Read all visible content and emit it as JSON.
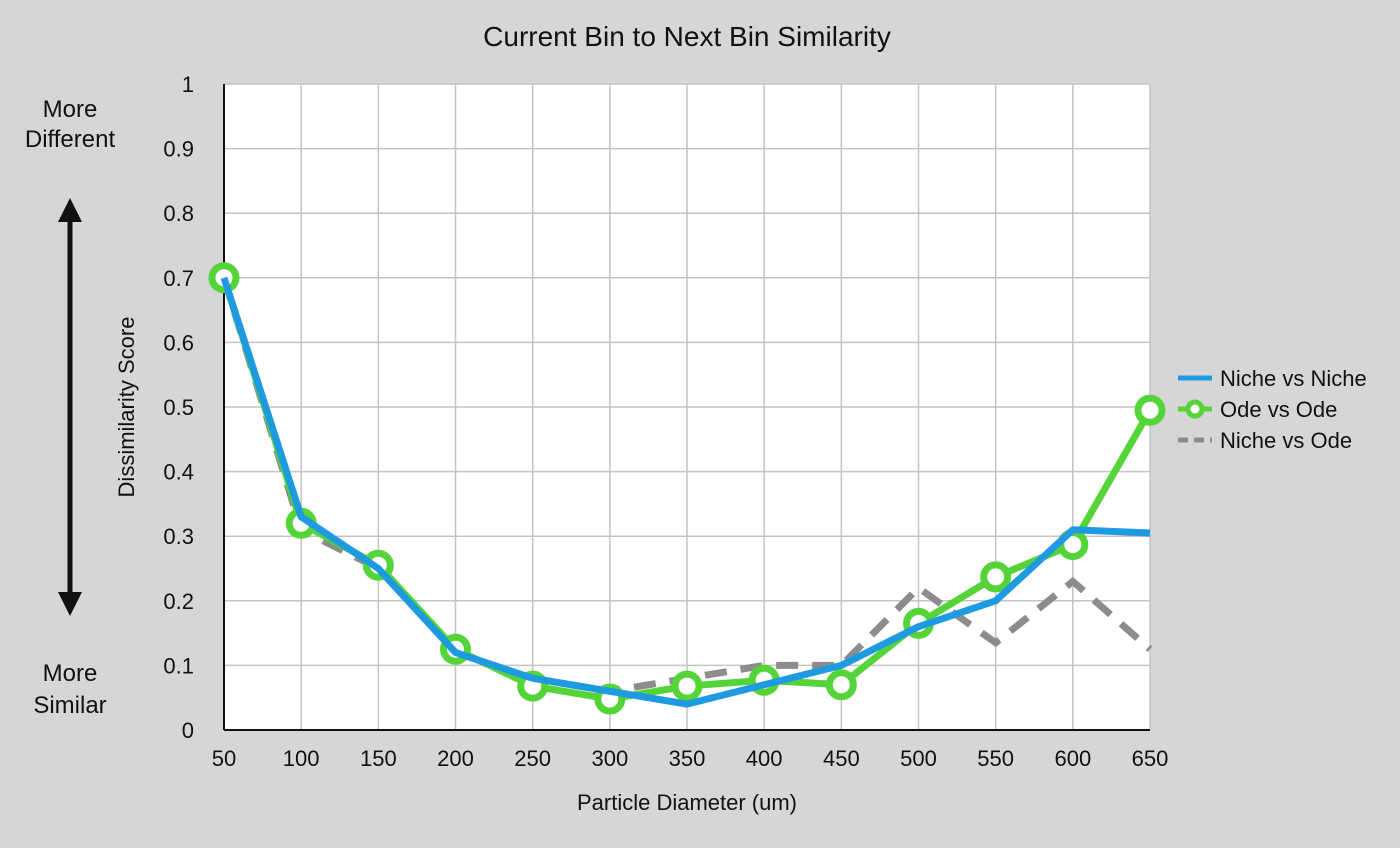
{
  "chart_data": {
    "type": "line",
    "title": "Current Bin to Next Bin Similarity",
    "xlabel": "Particle Diameter (um)",
    "ylabel": "Dissimilarity Score",
    "x": [
      50,
      100,
      150,
      200,
      250,
      300,
      350,
      400,
      450,
      500,
      550,
      600,
      650
    ],
    "x_tick_labels": [
      "50",
      "100",
      "150",
      "200",
      "250",
      "300",
      "350",
      "400",
      "450",
      "500",
      "550",
      "600",
      "650"
    ],
    "y_tick_labels": [
      "0",
      "0.1",
      "0.2",
      "0.3",
      "0.4",
      "0.5",
      "0.6",
      "0.7",
      "0.8",
      "0.9",
      "1"
    ],
    "xlim": [
      50,
      650
    ],
    "ylim": [
      0,
      1
    ],
    "grid": true,
    "legend_position": "right",
    "annotations": {
      "top": [
        "More",
        "Different"
      ],
      "bottom": [
        "More",
        "Similar"
      ]
    },
    "series": [
      {
        "name": "Niche vs Niche",
        "color": "#1e9be0",
        "style": "solid",
        "values": [
          0.7,
          0.33,
          0.25,
          0.12,
          0.08,
          0.06,
          0.04,
          0.07,
          0.1,
          0.16,
          0.2,
          0.31,
          0.305
        ]
      },
      {
        "name": "Ode vs Ode",
        "color": "#55d43a",
        "style": "solid-circles",
        "values": [
          0.7,
          0.32,
          0.255,
          0.125,
          0.068,
          0.048,
          0.068,
          0.077,
          0.07,
          0.165,
          0.237,
          0.287,
          0.495
        ]
      },
      {
        "name": "Niche vs Ode",
        "color": "#8c8c8c",
        "style": "dashed",
        "values": [
          0.7,
          0.31,
          0.25,
          0.12,
          0.08,
          0.06,
          0.08,
          0.1,
          0.1,
          0.22,
          0.135,
          0.23,
          0.125
        ]
      }
    ]
  }
}
